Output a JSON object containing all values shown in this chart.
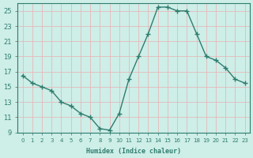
{
  "x": [
    0,
    1,
    2,
    3,
    4,
    5,
    6,
    7,
    8,
    9,
    10,
    11,
    12,
    13,
    14,
    15,
    16,
    17,
    18,
    19,
    20,
    21,
    22,
    23
  ],
  "y": [
    16.5,
    15.5,
    15.0,
    14.5,
    13.0,
    12.5,
    11.5,
    11.0,
    9.5,
    9.3,
    11.5,
    16.0,
    19.0,
    22.0,
    25.5,
    25.5,
    25.0,
    25.0,
    22.0,
    19.0,
    18.5,
    17.5,
    16.0,
    15.5
  ],
  "line_color": "#2e7d6e",
  "marker": "+",
  "marker_size": 4,
  "bg_color": "#ceeee8",
  "grid_color": "#e8b0b0",
  "axis_color": "#2e7d6e",
  "xlabel": "Humidex (Indice chaleur)",
  "ylim": [
    9,
    26
  ],
  "yticks": [
    9,
    11,
    13,
    15,
    17,
    19,
    21,
    23,
    25
  ],
  "xticks": [
    0,
    1,
    2,
    3,
    4,
    5,
    6,
    7,
    8,
    9,
    10,
    11,
    12,
    13,
    14,
    15,
    16,
    17,
    18,
    19,
    20,
    21,
    22,
    23
  ],
  "xtick_labels": [
    "0",
    "1",
    "2",
    "3",
    "4",
    "5",
    "6",
    "7",
    "8",
    "9",
    "10",
    "11",
    "12",
    "13",
    "14",
    "15",
    "16",
    "17",
    "18",
    "19",
    "20",
    "21",
    "22",
    "23"
  ]
}
